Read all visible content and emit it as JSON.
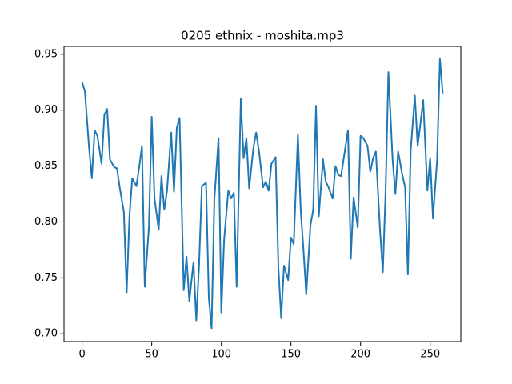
{
  "chart_data": {
    "type": "line",
    "title": "0205 ethnix - moshita.mp3",
    "x": [
      0,
      2,
      5,
      7,
      9,
      11,
      14,
      16,
      18,
      20,
      23,
      25,
      27,
      30,
      32,
      34,
      36,
      39,
      41,
      43,
      45,
      48,
      50,
      52,
      55,
      57,
      59,
      61,
      64,
      66,
      68,
      70,
      73,
      75,
      77,
      80,
      82,
      84,
      86,
      89,
      91,
      93,
      95,
      98,
      100,
      102,
      105,
      107,
      109,
      111,
      114,
      116,
      118,
      120,
      123,
      125,
      127,
      130,
      132,
      134,
      136,
      139,
      141,
      143,
      145,
      148,
      150,
      152,
      155,
      157,
      159,
      161,
      164,
      166,
      168,
      170,
      173,
      175,
      177,
      180,
      182,
      184,
      186,
      189,
      191,
      193,
      195,
      198,
      200,
      202,
      205,
      207,
      209,
      211,
      214,
      216,
      218,
      220,
      223,
      225,
      227,
      230,
      232,
      234,
      236,
      239,
      241,
      243,
      245,
      248,
      250,
      252,
      255,
      257,
      259
    ],
    "series": [
      {
        "color": "#1f77b4",
        "values": [
          0.925,
          0.917,
          0.866,
          0.839,
          0.882,
          0.877,
          0.852,
          0.896,
          0.901,
          0.856,
          0.849,
          0.848,
          0.831,
          0.809,
          0.737,
          0.805,
          0.839,
          0.832,
          0.849,
          0.868,
          0.742,
          0.796,
          0.894,
          0.821,
          0.793,
          0.841,
          0.811,
          0.828,
          0.88,
          0.827,
          0.884,
          0.893,
          0.739,
          0.769,
          0.729,
          0.764,
          0.712,
          0.761,
          0.832,
          0.835,
          0.732,
          0.705,
          0.82,
          0.875,
          0.719,
          0.784,
          0.828,
          0.821,
          0.826,
          0.742,
          0.91,
          0.857,
          0.875,
          0.83,
          0.866,
          0.88,
          0.864,
          0.831,
          0.836,
          0.828,
          0.852,
          0.858,
          0.759,
          0.714,
          0.761,
          0.748,
          0.786,
          0.78,
          0.878,
          0.811,
          0.775,
          0.735,
          0.797,
          0.811,
          0.904,
          0.805,
          0.856,
          0.836,
          0.831,
          0.821,
          0.85,
          0.842,
          0.841,
          0.866,
          0.882,
          0.767,
          0.822,
          0.795,
          0.877,
          0.875,
          0.868,
          0.845,
          0.857,
          0.863,
          0.792,
          0.755,
          0.828,
          0.934,
          0.856,
          0.825,
          0.863,
          0.842,
          0.831,
          0.753,
          0.864,
          0.913,
          0.868,
          0.888,
          0.909,
          0.828,
          0.857,
          0.803,
          0.856,
          0.946,
          0.915
        ]
      }
    ],
    "xlim": [
      -13,
      272
    ],
    "ylim": [
      0.693,
      0.957
    ],
    "xticks": [
      0,
      50,
      100,
      150,
      200,
      250
    ],
    "yticks": [
      {
        "value": 0.7,
        "label": "0.70"
      },
      0.75,
      {
        "value": 0.8,
        "label": "0.80"
      },
      0.85,
      {
        "value": 0.9,
        "label": "0.90"
      },
      0.95
    ]
  }
}
